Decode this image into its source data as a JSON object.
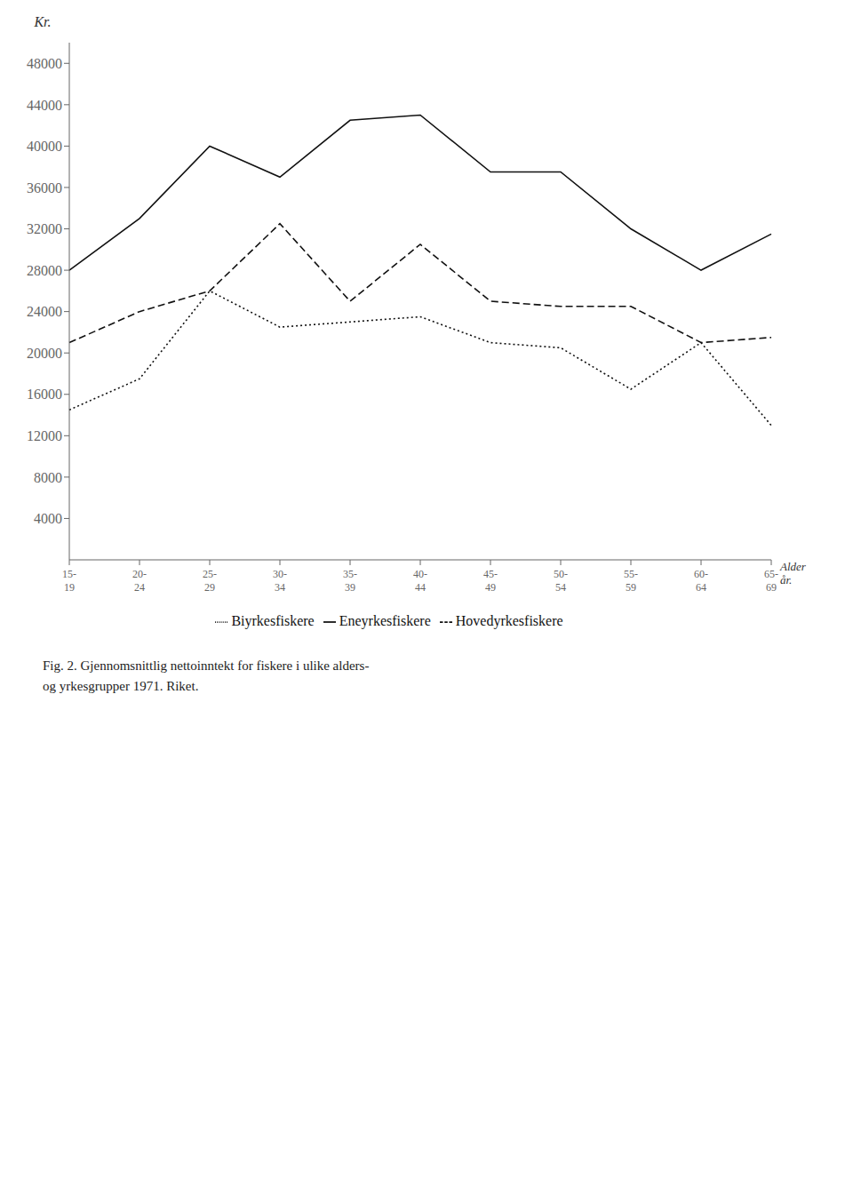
{
  "chart_data": {
    "type": "line",
    "title": "Fig. 2. Gjennomsnittlig nettoinntekt for fiskere i ulike alders-\nog yrkesgrupper 1971. Riket.",
    "x_label": "Alder",
    "x_label_2": "år.",
    "y_label": "Kr.",
    "categories": [
      "15-\n19",
      "20-\n24",
      "25-\n29",
      "30-\n34",
      "35-\n39",
      "40-\n44",
      "45-\n49",
      "50-\n54",
      "55-\n59",
      "60-\n64",
      "65-\n69"
    ],
    "series": [
      {
        "name": "Eneyrkesfiskere",
        "color": "#111111",
        "line_style": "solid",
        "values": [
          28000,
          33000,
          40000,
          37000,
          42500,
          43000,
          37500,
          37500,
          32000,
          28000,
          31500
        ]
      },
      {
        "name": "Hovedyrkesfiskere",
        "color": "#111111",
        "line_style": "dashed",
        "values": [
          21000,
          24000,
          26000,
          32500,
          25000,
          30500,
          25000,
          24500,
          24500,
          21000,
          21500
        ]
      },
      {
        "name": "Biyrkesfiskere",
        "color": "#111111",
        "line_style": "dotted",
        "values": [
          14500,
          17500,
          26000,
          22500,
          23000,
          23500,
          21000,
          20500,
          16500,
          21000,
          13000
        ]
      }
    ],
    "ylim": [
      0,
      50000
    ],
    "yticks": [
      4000,
      8000,
      12000,
      16000,
      20000,
      24000,
      28000,
      32000,
      36000,
      40000,
      44000,
      48000
    ],
    "grid": false
  }
}
